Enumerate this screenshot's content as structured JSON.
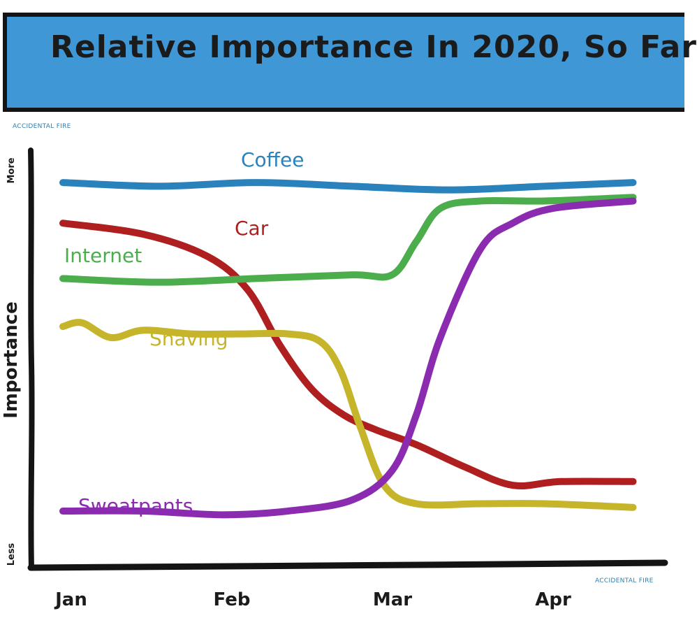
{
  "banner": {
    "title": "Relative Importance In 2020, So Far"
  },
  "credits": {
    "top": "ACCIDENTAL FIRE",
    "bottom": "ACCIDENTAL FIRE"
  },
  "chart_data": {
    "type": "line",
    "title": "Relative Importance In 2020, So Far",
    "ylabel": "Importance",
    "ylabel_top": "More",
    "ylabel_bottom": "Less",
    "xlabel": "",
    "x_ticks": [
      "Jan",
      "Feb",
      "Mar",
      "Apr"
    ],
    "xlim": [
      0,
      3.55
    ],
    "ylim": [
      0,
      100
    ],
    "grid": false,
    "legend": "none",
    "series": [
      {
        "name": "Coffee",
        "color": "#2a82bd",
        "x": [
          0,
          0.6,
          1.2,
          1.8,
          2.4,
          3.0,
          3.55
        ],
        "y": [
          96,
          95,
          96,
          95,
          94,
          95,
          96
        ]
      },
      {
        "name": "Car",
        "color": "#b01f1f",
        "x": [
          0,
          0.5,
          0.9,
          1.15,
          1.35,
          1.55,
          1.75,
          1.95,
          2.2,
          2.5,
          2.8,
          3.1,
          3.55
        ],
        "y": [
          85,
          82,
          76,
          67,
          52,
          40,
          33,
          29,
          25,
          19,
          14,
          15,
          15
        ]
      },
      {
        "name": "Internet",
        "color": "#4cad4c",
        "x": [
          0,
          0.6,
          1.2,
          1.8,
          2.05,
          2.2,
          2.35,
          2.6,
          3.0,
          3.55
        ],
        "y": [
          70,
          69,
          70,
          71,
          71,
          80,
          89,
          91,
          91,
          92
        ]
      },
      {
        "name": "Shaving",
        "color": "#c6b42b",
        "x": [
          0,
          0.12,
          0.3,
          0.5,
          0.8,
          1.1,
          1.4,
          1.6,
          1.73,
          1.85,
          2.0,
          2.2,
          2.6,
          3.0,
          3.55
        ],
        "y": [
          57,
          58,
          54,
          56,
          55,
          55,
          55,
          53,
          45,
          30,
          14,
          9,
          9,
          9,
          8
        ]
      },
      {
        "name": "Sweatpants",
        "color": "#8a2bb0",
        "x": [
          0,
          0.5,
          1.0,
          1.4,
          1.8,
          2.05,
          2.2,
          2.35,
          2.6,
          2.8,
          3.05,
          3.55
        ],
        "y": [
          7,
          7,
          6,
          7,
          10,
          18,
          33,
          54,
          78,
          85,
          89,
          91
        ]
      }
    ]
  }
}
